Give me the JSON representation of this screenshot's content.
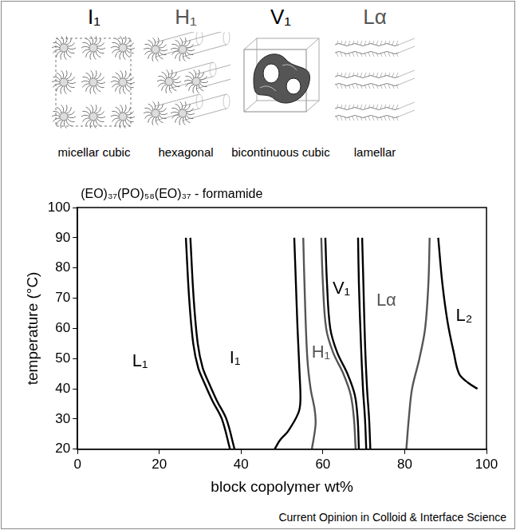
{
  "structures": [
    {
      "symbol": "I₁",
      "name": "micellar cubic",
      "color": "#000000"
    },
    {
      "symbol": "H₁",
      "name": "hexagonal",
      "color": "#555555"
    },
    {
      "symbol": "V₁",
      "name": "bicontinuous cubic",
      "color": "#000000"
    },
    {
      "symbol": "Lα",
      "name": "lamellar",
      "color": "#555555"
    }
  ],
  "chart_data": {
    "type": "line",
    "title": "(EO)₃₇(PO)₅₈(EO)₃₇ - formamide",
    "x_label": "block copolymer wt%",
    "y_label": "temperature (°C)",
    "xlim": [
      0,
      100
    ],
    "xticks": [
      0,
      20,
      40,
      60,
      80,
      100
    ],
    "ylim": [
      20,
      100
    ],
    "yticks": [
      20,
      30,
      40,
      50,
      60,
      70,
      80,
      90,
      100
    ],
    "grid": false,
    "marker": "none",
    "line_style": "solid",
    "series": [
      {
        "color": "#000000",
        "x": [
          26.5,
          27.3,
          28.3,
          29.5,
          31.0,
          33.0,
          35.3,
          37.3
        ],
        "values": [
          90,
          70,
          55,
          47,
          42,
          36,
          30,
          20
        ]
      },
      {
        "color": "#000000",
        "x": [
          27.6,
          28.4,
          29.4,
          30.6,
          32.1,
          34.1,
          36.4,
          38.4
        ],
        "values": [
          90,
          70,
          55,
          47,
          42,
          36,
          30,
          20
        ]
      },
      {
        "color": "#000000",
        "x": [
          53.0,
          53.4,
          53.8,
          54.3,
          54.5,
          54.0,
          51.5,
          49.5,
          48.2
        ],
        "values": [
          90,
          75,
          60,
          45,
          36,
          32,
          26,
          23,
          20
        ]
      },
      {
        "color": "#555555",
        "x": [
          55.2,
          55.6,
          56.2,
          57.0,
          58.0,
          58.2,
          57.3
        ],
        "values": [
          90,
          70,
          50,
          40,
          33,
          28,
          20
        ]
      },
      {
        "color": "#555555",
        "x": [
          59.6,
          60.0,
          60.8,
          62.5,
          65.0,
          66.8,
          67.6,
          68.0
        ],
        "values": [
          90,
          75,
          60,
          52,
          45,
          38,
          30,
          20
        ]
      },
      {
        "color": "#000000",
        "x": [
          60.6,
          61.0,
          61.8,
          63.5,
          66.0,
          67.8,
          68.5,
          68.8
        ],
        "values": [
          90,
          75,
          60,
          52,
          45,
          38,
          30,
          20
        ]
      },
      {
        "color": "#000000",
        "x": [
          68.6,
          68.8,
          69.3,
          69.8,
          70.3,
          70.6
        ],
        "values": [
          90,
          75,
          55,
          40,
          30,
          20
        ]
      },
      {
        "color": "#000000",
        "x": [
          69.6,
          69.9,
          70.3,
          70.8,
          71.3,
          71.6
        ],
        "values": [
          90,
          75,
          55,
          40,
          30,
          20
        ]
      },
      {
        "color": "#555555",
        "x": [
          86.1,
          85.8,
          85.0,
          83.6,
          81.8,
          81.0,
          80.4
        ],
        "values": [
          90,
          75,
          60,
          50,
          40,
          30,
          20
        ]
      },
      {
        "color": "#000000",
        "x": [
          88.2,
          89.2,
          90.5,
          92.0,
          93.3,
          95.5,
          97.8
        ],
        "values": [
          90,
          75,
          62,
          52,
          45,
          42,
          40
        ]
      }
    ],
    "annotations": [
      {
        "text": "L₁",
        "x": 15.3,
        "y": 49,
        "color": "#000000"
      },
      {
        "text": "I₁",
        "x": 38.5,
        "y": 50,
        "color": "#000000"
      },
      {
        "text": "H₁",
        "x": 59.5,
        "y": 52,
        "color": "#555555"
      },
      {
        "text": "V₁",
        "x": 64.5,
        "y": 73,
        "color": "#000000"
      },
      {
        "text": "Lα",
        "x": 75.5,
        "y": 69,
        "color": "#555555"
      },
      {
        "text": "L₂",
        "x": 94.5,
        "y": 64,
        "color": "#000000"
      }
    ]
  },
  "credit": "Current Opinion in Colloid & Interface Science"
}
